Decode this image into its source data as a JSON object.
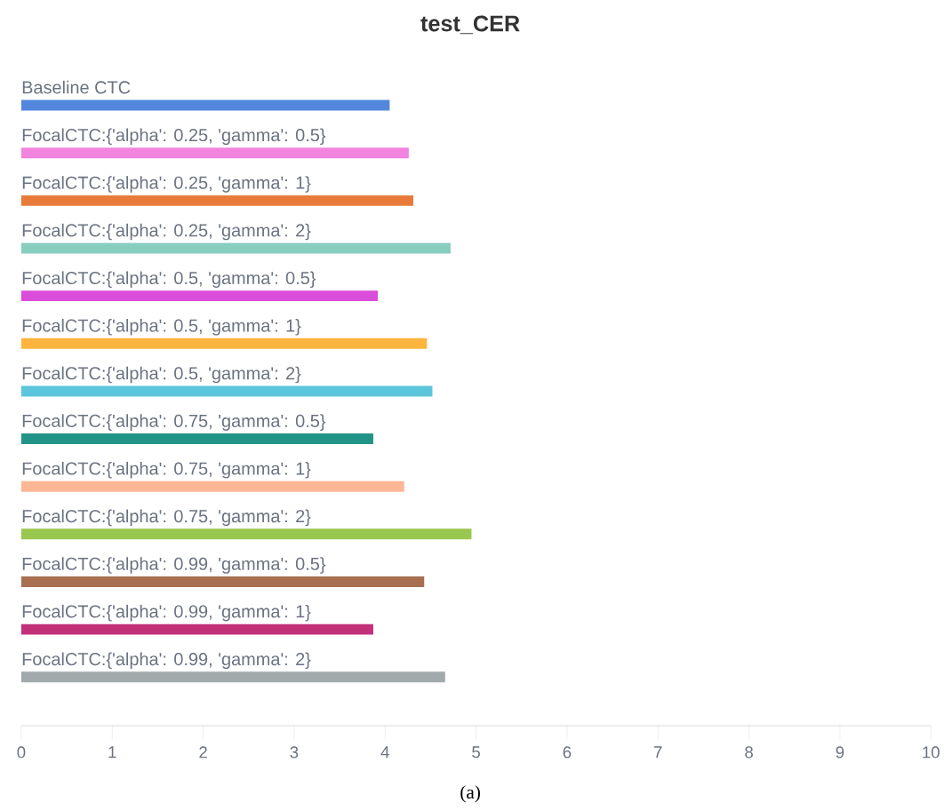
{
  "chart_data": {
    "type": "bar",
    "orientation": "horizontal",
    "title": "test_CER",
    "categories": [
      "Baseline CTC",
      "FocalCTC:{'alpha': 0.25, 'gamma': 0.5}",
      "FocalCTC:{'alpha': 0.25, 'gamma': 1}",
      "FocalCTC:{'alpha': 0.25, 'gamma': 2}",
      "FocalCTC:{'alpha': 0.5, 'gamma': 0.5}",
      "FocalCTC:{'alpha': 0.5, 'gamma': 1}",
      "FocalCTC:{'alpha': 0.5, 'gamma': 2}",
      "FocalCTC:{'alpha': 0.75, 'gamma': 0.5}",
      "FocalCTC:{'alpha': 0.75, 'gamma': 1}",
      "FocalCTC:{'alpha': 0.75, 'gamma': 2}",
      "FocalCTC:{'alpha': 0.99, 'gamma': 0.5}",
      "FocalCTC:{'alpha': 0.99, 'gamma': 1}",
      "FocalCTC:{'alpha': 0.99, 'gamma': 2}"
    ],
    "values": [
      4.05,
      4.26,
      4.31,
      4.72,
      3.92,
      4.46,
      4.52,
      3.87,
      4.21,
      4.95,
      4.43,
      3.87,
      4.66
    ],
    "colors": [
      "#5387dd",
      "#f283df",
      "#e87b3a",
      "#87cebf",
      "#da4cda",
      "#ffb43d",
      "#5bc5db",
      "#229487",
      "#fdb795",
      "#9ac74f",
      "#a86f51",
      "#c2307a",
      "#a2a9ab"
    ],
    "xlim": [
      0,
      10
    ],
    "xticks": [
      0,
      1,
      2,
      3,
      4,
      5,
      6,
      7,
      8,
      9,
      10
    ],
    "annotations": [
      "(a)"
    ]
  }
}
